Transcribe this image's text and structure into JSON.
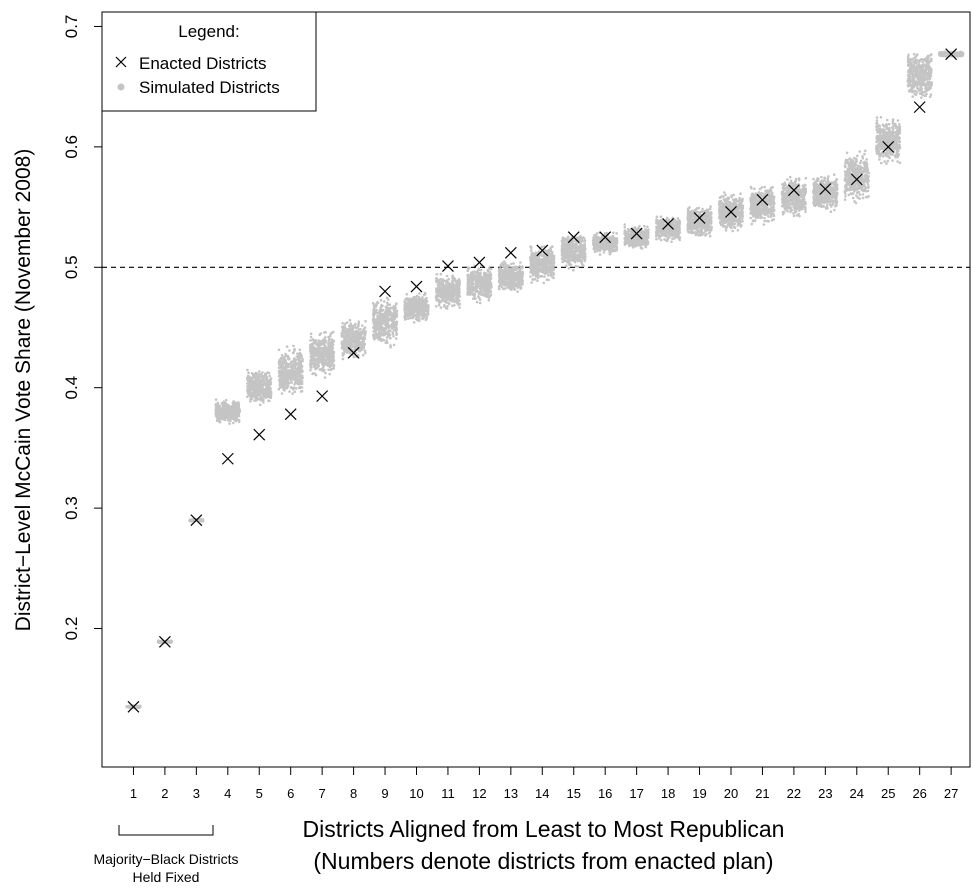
{
  "chart_data": {
    "type": "scatter",
    "xlabel_line1": "Districts Aligned from Least to Most Republican",
    "xlabel_line2": "(Numbers denote districts from enacted plan)",
    "ylabel": "District−Level McCain Vote Share (November 2008)",
    "ylim": [
      0.085,
      0.712
    ],
    "xlim": [
      0.0,
      27.6
    ],
    "y_ticks": [
      0.2,
      0.3,
      0.4,
      0.5,
      0.6,
      0.7
    ],
    "y_tick_labels": [
      "0.2",
      "0.3",
      "0.4",
      "0.5",
      "0.6",
      "0.7"
    ],
    "x_ticks": [
      1,
      2,
      3,
      4,
      5,
      6,
      7,
      8,
      9,
      10,
      11,
      12,
      13,
      14,
      15,
      16,
      17,
      18,
      19,
      20,
      21,
      22,
      23,
      24,
      25,
      26,
      27
    ],
    "x_tick_labels": [
      "1",
      "2",
      "3",
      "4",
      "5",
      "6",
      "7",
      "8",
      "9",
      "10",
      "11",
      "12",
      "13",
      "14",
      "15",
      "16",
      "17",
      "18",
      "19",
      "20",
      "21",
      "22",
      "23",
      "24",
      "25",
      "26",
      "27"
    ],
    "reference_line": 0.5,
    "reference_line_style": "dashed",
    "legend": {
      "title": "Legend:",
      "placement": "top-left",
      "items": [
        {
          "label": "Enacted Districts",
          "marker": "x"
        },
        {
          "label": "Simulated Districts",
          "marker": "dot"
        }
      ]
    },
    "bracket": {
      "from": 1,
      "to": 3,
      "label_line1": "Majority−Black Districts",
      "label_line2": "Held Fixed"
    },
    "series": [
      {
        "name": "Enacted Districts",
        "marker": "x",
        "x": [
          1,
          2,
          3,
          4,
          5,
          6,
          7,
          8,
          9,
          10,
          11,
          12,
          13,
          14,
          15,
          16,
          17,
          18,
          19,
          20,
          21,
          22,
          23,
          24,
          25,
          26,
          27
        ],
        "y": [
          0.135,
          0.189,
          0.29,
          0.341,
          0.361,
          0.378,
          0.393,
          0.429,
          0.48,
          0.484,
          0.501,
          0.504,
          0.512,
          0.514,
          0.525,
          0.525,
          0.528,
          0.536,
          0.541,
          0.546,
          0.556,
          0.564,
          0.565,
          0.573,
          0.6,
          0.633,
          0.677
        ]
      },
      {
        "name": "Simulated Districts",
        "marker": "dot",
        "color": "#c4c4c4",
        "x": [
          1,
          2,
          3,
          4,
          5,
          6,
          7,
          8,
          9,
          10,
          11,
          12,
          13,
          14,
          15,
          16,
          17,
          18,
          19,
          20,
          21,
          22,
          23,
          24,
          25,
          26,
          27
        ],
        "center": [
          0.135,
          0.189,
          0.29,
          0.38,
          0.4,
          0.413,
          0.428,
          0.44,
          0.455,
          0.466,
          0.48,
          0.486,
          0.492,
          0.503,
          0.514,
          0.52,
          0.525,
          0.532,
          0.538,
          0.546,
          0.552,
          0.558,
          0.562,
          0.575,
          0.605,
          0.66,
          0.677
        ],
        "min": [
          0.134,
          0.188,
          0.289,
          0.37,
          0.383,
          0.395,
          0.407,
          0.423,
          0.43,
          0.452,
          0.463,
          0.47,
          0.479,
          0.485,
          0.49,
          0.508,
          0.512,
          0.519,
          0.525,
          0.527,
          0.532,
          0.54,
          0.543,
          0.552,
          0.584,
          0.63,
          0.675
        ],
        "max": [
          0.136,
          0.19,
          0.291,
          0.392,
          0.418,
          0.445,
          0.452,
          0.46,
          0.48,
          0.481,
          0.496,
          0.505,
          0.51,
          0.521,
          0.526,
          0.529,
          0.536,
          0.542,
          0.556,
          0.566,
          0.569,
          0.579,
          0.58,
          0.602,
          0.629,
          0.677,
          0.68
        ]
      }
    ]
  }
}
